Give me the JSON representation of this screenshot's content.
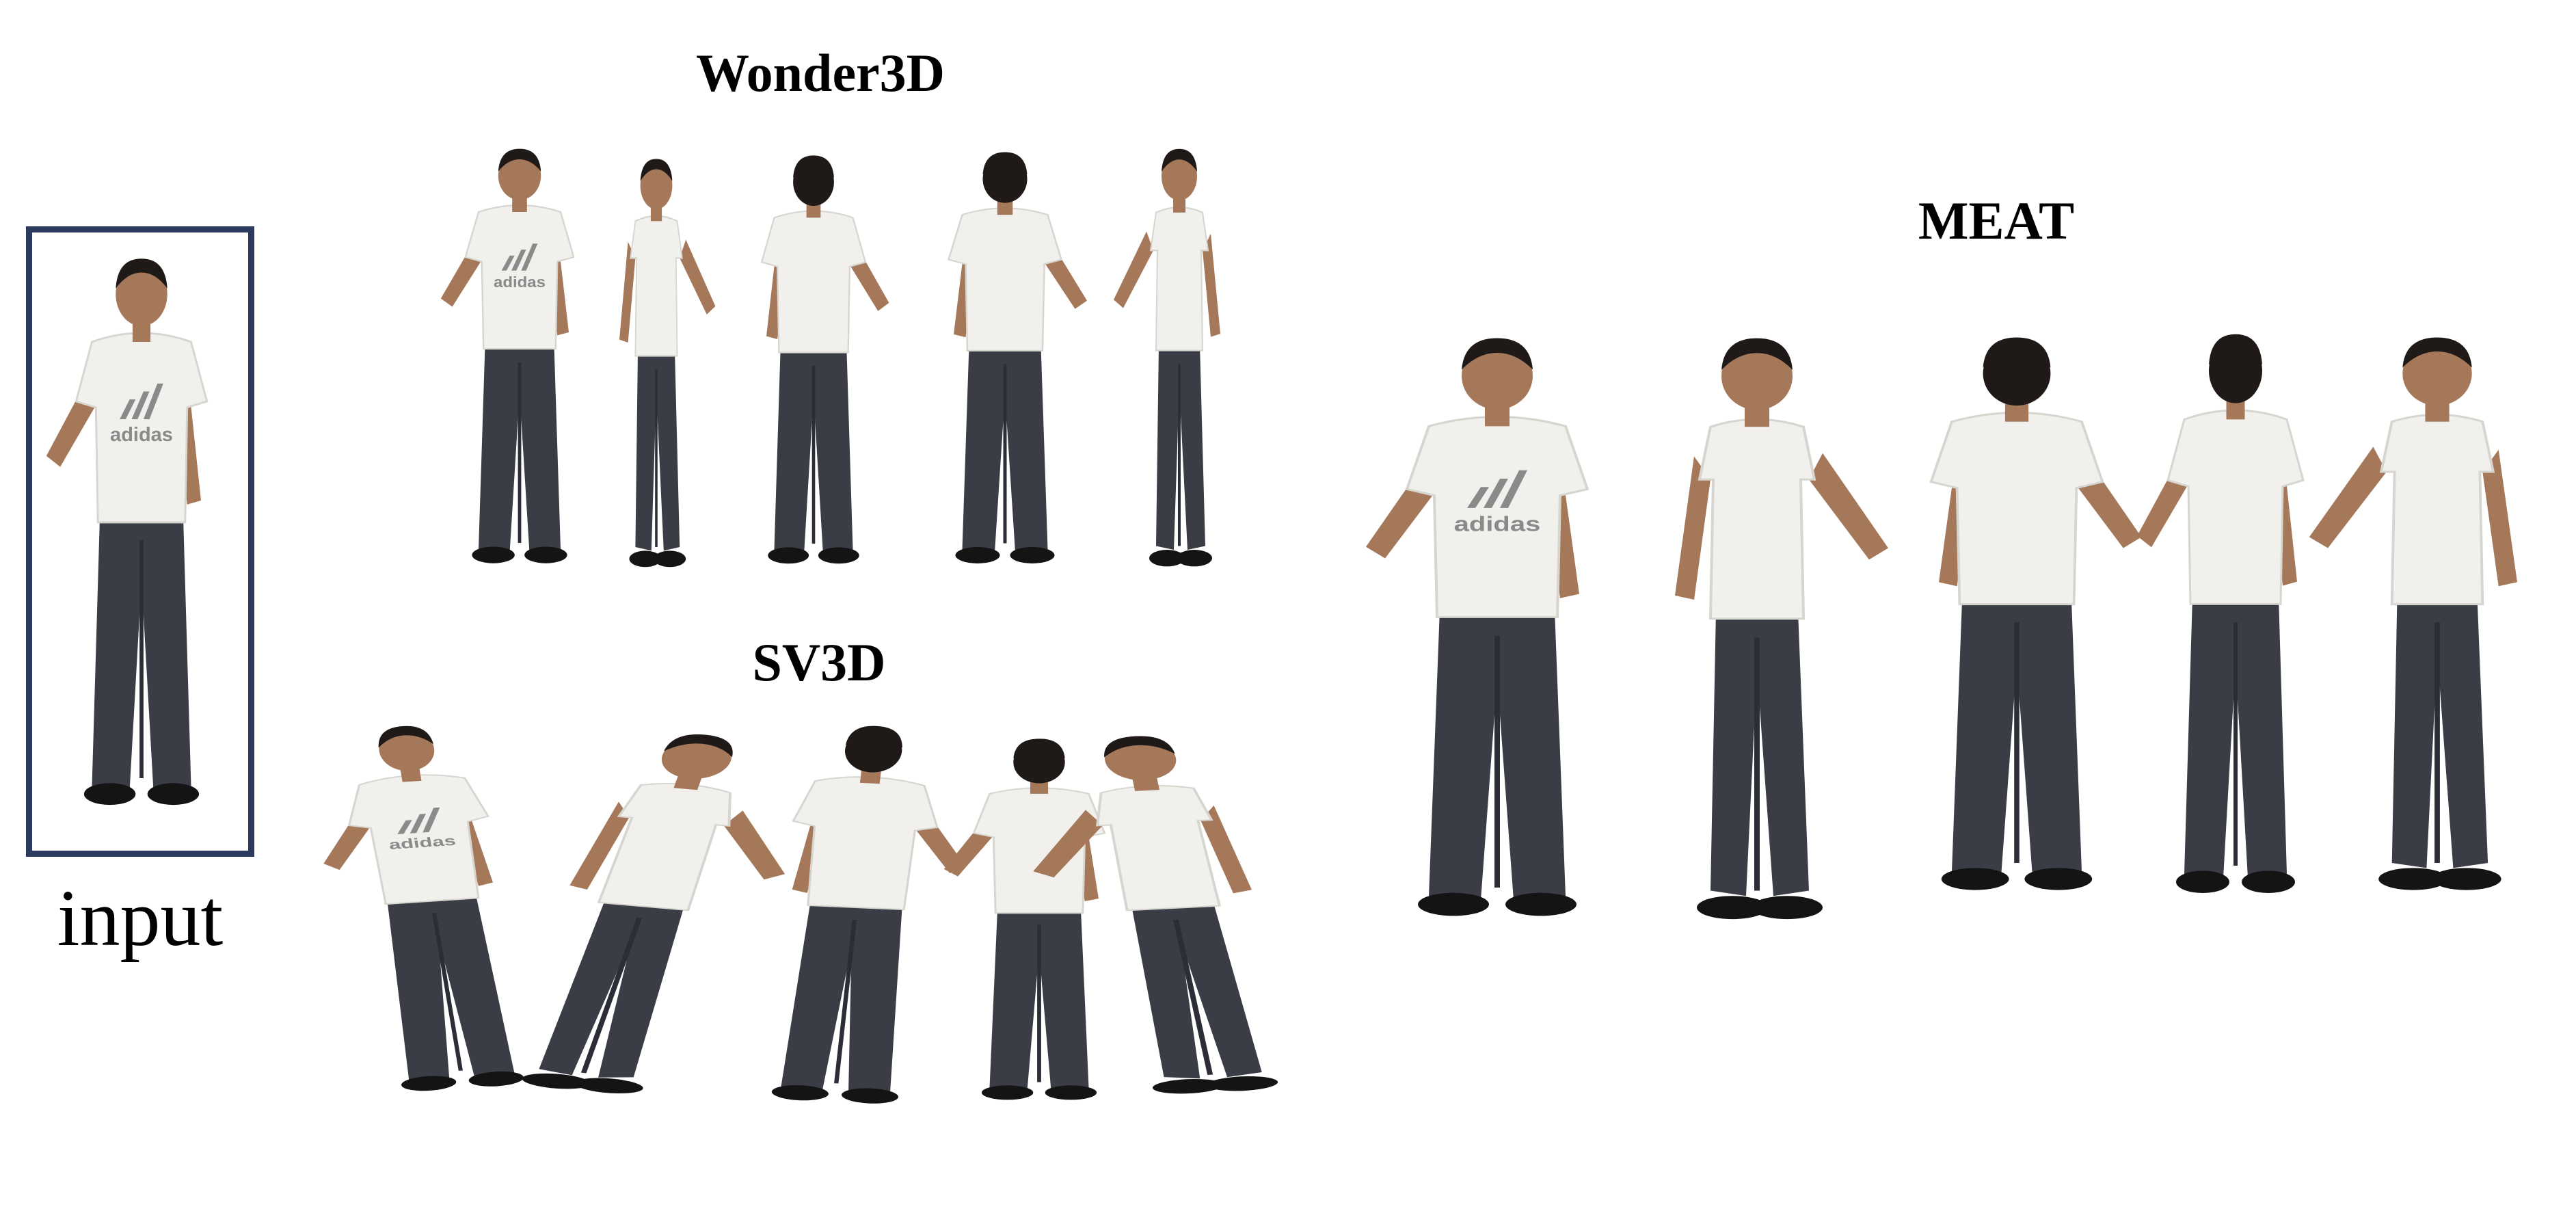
{
  "labels": {
    "input": "input",
    "wonder3d": "Wonder3D",
    "sv3d": "SV3D",
    "meat": "MEAT"
  },
  "shirt_text": "adidas",
  "colors": {
    "frame": "#2b3a5e",
    "skin": "#a6785a",
    "hair": "#1f1a17",
    "shirt": "#f1f0ec",
    "shirt_shade": "#d7d5cf",
    "pants": "#3a3d46",
    "pants_shade": "#2b2e36",
    "shoes": "#141414",
    "logo": "#8a8a8a"
  },
  "figures": [
    {
      "group": "input",
      "view": "front"
    },
    {
      "group": "wonder3d",
      "view": "front"
    },
    {
      "group": "wonder3d",
      "view": "side-left"
    },
    {
      "group": "wonder3d",
      "view": "back"
    },
    {
      "group": "wonder3d",
      "view": "back"
    },
    {
      "group": "wonder3d",
      "view": "side-right"
    },
    {
      "group": "sv3d",
      "view": "front"
    },
    {
      "group": "sv3d",
      "view": "side-right"
    },
    {
      "group": "sv3d",
      "view": "back"
    },
    {
      "group": "sv3d",
      "view": "back"
    },
    {
      "group": "sv3d",
      "view": "side-left"
    },
    {
      "group": "meat",
      "view": "front"
    },
    {
      "group": "meat",
      "view": "side-right"
    },
    {
      "group": "meat",
      "view": "back"
    },
    {
      "group": "meat",
      "view": "back"
    },
    {
      "group": "meat",
      "view": "side-left"
    }
  ]
}
